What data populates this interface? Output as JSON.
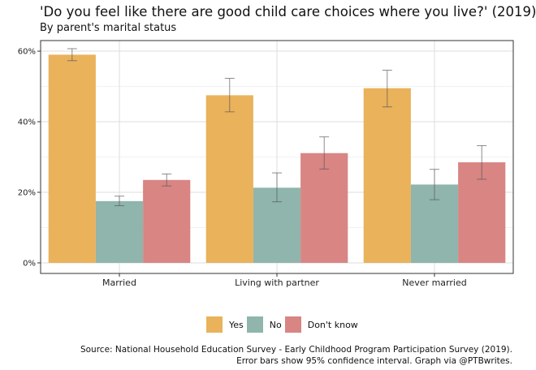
{
  "title": "'Do you feel like there are good child care choices where you live?' (2019)",
  "subtitle": "By parent's marital status",
  "caption_line1": "Source: National Household Education Survey - Early Childhood Program Participation Survey (2019).",
  "caption_line2": "Error bars show 95% confidence interval. Graph via @PTBwrites.",
  "chart_data": {
    "type": "bar",
    "categories": [
      "Married",
      "Living with partner",
      "Never married"
    ],
    "series": [
      {
        "name": "Yes",
        "color": "#e9b25b",
        "values": [
          59,
          47.5,
          49.5
        ],
        "ci_low": [
          57.3,
          42.8,
          44.2
        ],
        "ci_high": [
          60.7,
          52.3,
          54.6
        ]
      },
      {
        "name": "No",
        "color": "#8fb5ac",
        "values": [
          17.5,
          21.3,
          22.2
        ],
        "ci_low": [
          16.2,
          17.3,
          17.9
        ],
        "ci_high": [
          18.9,
          25.5,
          26.5
        ]
      },
      {
        "name": "Don't know",
        "color": "#d88584",
        "values": [
          23.5,
          31.1,
          28.5
        ],
        "ci_low": [
          21.8,
          26.6,
          23.7
        ],
        "ci_high": [
          25.2,
          35.7,
          33.2
        ]
      }
    ],
    "ylim": [
      -3,
      63
    ],
    "y_ticks": [
      "0%",
      "20%",
      "40%",
      "60%"
    ],
    "grid": true,
    "legend_position": "bottom",
    "xlabel": "",
    "ylabel": ""
  }
}
